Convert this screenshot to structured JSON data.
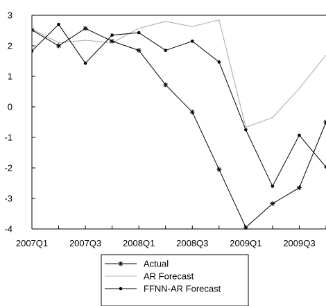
{
  "chart_data": {
    "type": "line",
    "title": "",
    "xlabel": "",
    "ylabel": "",
    "ylim": [
      -4,
      3
    ],
    "yticks": [
      "3",
      "2",
      "1",
      "0",
      "-1",
      "-2",
      "-3",
      "-4"
    ],
    "x": [
      "2007Q1",
      "2007Q2",
      "2007Q3",
      "2007Q4",
      "2008Q1",
      "2008Q2",
      "2008Q3",
      "2008Q4",
      "2009Q1",
      "2009Q2",
      "2009Q3",
      "2009Q4"
    ],
    "xtick_labels": [
      "2007Q1",
      "2007Q3",
      "2008Q1",
      "2008Q3",
      "2009Q1",
      "2009Q3"
    ],
    "grid": false,
    "legend_position": "bottom-center",
    "series": [
      {
        "name": "Actual",
        "color": "#000000",
        "marker": "star",
        "values": [
          2.52,
          2.0,
          2.57,
          2.15,
          1.85,
          0.72,
          -0.17,
          -2.05,
          -3.95,
          -3.17,
          -2.65,
          -0.5
        ]
      },
      {
        "name": "AR Forecast",
        "color": "#b4b4b4",
        "marker": "none",
        "values": [
          2.55,
          2.1,
          2.18,
          2.1,
          2.57,
          2.8,
          2.63,
          2.85,
          -0.67,
          -0.35,
          0.6,
          1.7
        ]
      },
      {
        "name": "FFNN-AR Forecast",
        "color": "#000000",
        "marker": "dot",
        "values": [
          1.83,
          2.7,
          1.43,
          2.35,
          2.43,
          1.85,
          2.15,
          1.47,
          -0.75,
          -2.6,
          -0.93,
          -1.97
        ]
      }
    ]
  }
}
